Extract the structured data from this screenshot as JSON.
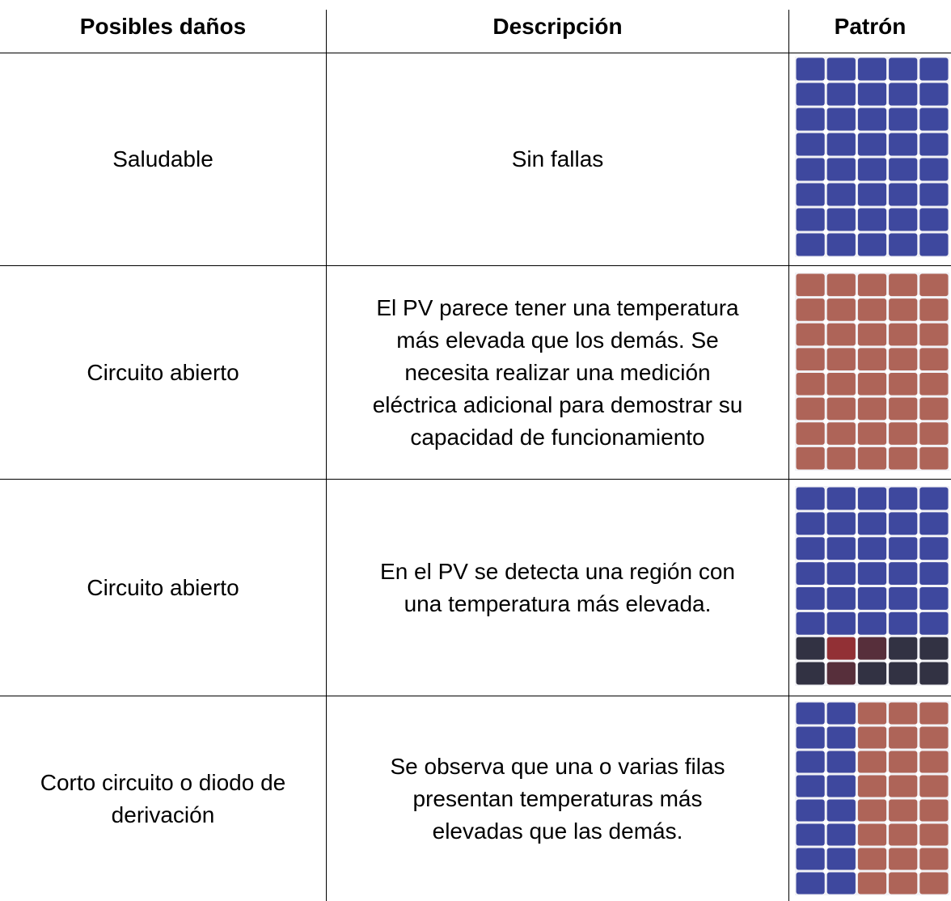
{
  "table": {
    "header": [
      "Posibles daños",
      "Descripción",
      "Patrón"
    ],
    "rows": [
      {
        "damage": [
          "Saludable"
        ],
        "description": [
          "Sin fallas"
        ]
      },
      {
        "damage": [
          "Circuito abierto"
        ],
        "description": [
          "El PV parece tener una temperatura",
          "más elevada que los demás. Se",
          "necesita realizar una medición",
          "eléctrica adicional para demostrar su",
          "capacidad de funcionamiento"
        ]
      },
      {
        "damage": [
          "Circuito abierto"
        ],
        "description": [
          "En el PV se detecta una región con",
          "una temperatura más elevada."
        ]
      },
      {
        "damage": [
          "Corto circuito o diodo de",
          "derivación"
        ],
        "description": [
          "Se observa que una o varias filas",
          "presentan temperaturas más",
          "elevadas que las demás."
        ]
      }
    ]
  }
}
